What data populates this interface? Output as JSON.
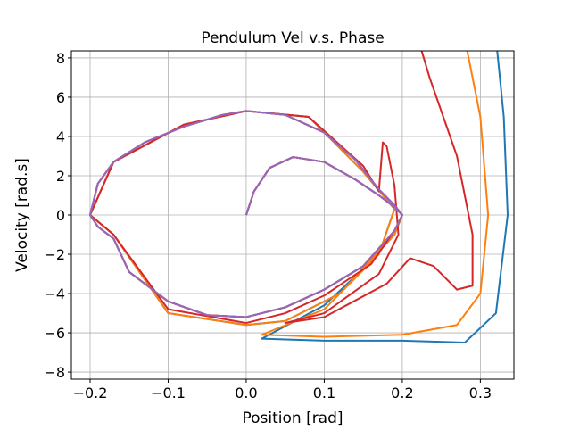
{
  "chart_data": {
    "type": "line",
    "title": "Pendulum Vel v.s. Phase",
    "xlabel": "Position [rad]",
    "ylabel": "Velocity [rad.s]",
    "xlim": [
      -0.224,
      0.343
    ],
    "ylim": [
      -8.36,
      8.36
    ],
    "xticks": [
      {
        "value": -0.2,
        "label": "−0.2"
      },
      {
        "value": -0.1,
        "label": "−0.1"
      },
      {
        "value": 0,
        "label": "0.0"
      },
      0.1,
      0.2,
      0.3
    ],
    "yticks": [
      {
        "value": -8,
        "label": "−8"
      },
      {
        "value": -6,
        "label": "−6"
      },
      {
        "value": -4,
        "label": "−4"
      },
      {
        "value": -2,
        "label": "−2"
      },
      0,
      2,
      4,
      6,
      8
    ],
    "grid": true,
    "series": [
      {
        "color": "#1f77b4",
        "x": [
          0,
          0.01,
          0.03,
          0.06,
          0.1,
          0.14,
          0.17,
          0.19,
          0.2,
          0.19,
          0.15,
          0.1,
          0.05,
          0,
          -0.05,
          -0.1,
          -0.15,
          -0.17,
          -0.19,
          -0.2,
          -0.19,
          -0.17,
          -0.13,
          -0.08,
          -0.03,
          0,
          0.05,
          0.1,
          0.14,
          0.17,
          0.19,
          0.2,
          0.19,
          0.12,
          0.05,
          0,
          -0.1,
          -0.17,
          -0.2,
          -0.17,
          -0.08,
          0,
          0.08,
          0.15,
          0.19,
          0.17,
          0.1,
          0.02,
          0.1,
          0.2,
          0.28,
          0.32,
          0.335,
          0.33,
          0.32
        ],
        "values": [
          0,
          1.2,
          2.4,
          2.95,
          2.7,
          1.8,
          1.0,
          0.4,
          0,
          -0.8,
          -2.6,
          -3.8,
          -4.7,
          -5.2,
          -5.1,
          -4.4,
          -2.9,
          -1.2,
          -0.6,
          0,
          1.6,
          2.7,
          3.7,
          4.5,
          5.1,
          5.3,
          5.1,
          4.2,
          2.8,
          1.3,
          0.5,
          0,
          -1,
          -4,
          -5.4,
          -5.6,
          -5,
          -1,
          0,
          2.7,
          4.6,
          5.3,
          5,
          2.2,
          0.3,
          -2,
          -4.6,
          -6.3,
          -6.4,
          -6.4,
          -6.5,
          -5,
          0,
          5,
          9
        ]
      },
      {
        "color": "#ff7f0e",
        "x": [
          0,
          0.01,
          0.03,
          0.06,
          0.1,
          0.14,
          0.17,
          0.19,
          0.2,
          0.19,
          0.15,
          0.1,
          0.05,
          0,
          -0.05,
          -0.1,
          -0.15,
          -0.17,
          -0.19,
          -0.2,
          -0.19,
          -0.17,
          -0.13,
          -0.08,
          -0.03,
          0,
          0.05,
          0.1,
          0.14,
          0.17,
          0.19,
          0.2,
          0.19,
          0.12,
          0.05,
          0,
          -0.1,
          -0.17,
          -0.2,
          -0.17,
          -0.08,
          0,
          0.08,
          0.15,
          0.19,
          0.17,
          0.1,
          0.02,
          0.1,
          0.2,
          0.27,
          0.3,
          0.31,
          0.3,
          0.28
        ],
        "values": [
          0,
          1.2,
          2.4,
          2.95,
          2.7,
          1.8,
          1.0,
          0.4,
          0,
          -0.8,
          -2.6,
          -3.8,
          -4.7,
          -5.2,
          -5.1,
          -4.4,
          -2.9,
          -1.2,
          -0.6,
          0,
          1.6,
          2.7,
          3.7,
          4.5,
          5.1,
          5.3,
          5.1,
          4.2,
          2.8,
          1.3,
          0.5,
          0,
          -1,
          -4,
          -5.4,
          -5.6,
          -5,
          -1,
          0,
          2.7,
          4.6,
          5.3,
          5,
          2.2,
          0.3,
          -2,
          -4.8,
          -6.1,
          -6.2,
          -6.1,
          -5.6,
          -4,
          0,
          5,
          9
        ]
      },
      {
        "color": "#d62728",
        "x": [
          0,
          0.01,
          0.03,
          0.06,
          0.1,
          0.14,
          0.17,
          0.19,
          0.2,
          0.19,
          0.15,
          0.1,
          0.05,
          0,
          -0.05,
          -0.1,
          -0.15,
          -0.17,
          -0.19,
          -0.2,
          -0.19,
          -0.17,
          -0.13,
          -0.08,
          -0.03,
          0,
          0.05,
          0.1,
          0.14,
          0.17,
          0.19,
          0.2,
          0.19,
          0.16,
          0.1,
          0.05,
          0,
          -0.1,
          -0.17,
          -0.2,
          -0.17,
          -0.08,
          0,
          0.08,
          0.15,
          0.17,
          0.175,
          0.18,
          0.19,
          0.195,
          0.17,
          0.1,
          0.05,
          0.1,
          0.18,
          0.21,
          0.24,
          0.27,
          0.29,
          0.29,
          0.27,
          0.235,
          0.22
        ],
        "values": [
          0,
          1.2,
          2.4,
          2.95,
          2.7,
          1.8,
          1.0,
          0.4,
          0,
          -0.8,
          -2.6,
          -3.8,
          -4.7,
          -5.2,
          -5.1,
          -4.4,
          -2.9,
          -1.2,
          -0.6,
          0,
          1.6,
          2.7,
          3.7,
          4.5,
          5.1,
          5.3,
          5.1,
          4.2,
          2.8,
          1.3,
          0.5,
          0,
          -0.8,
          -2.5,
          -4.1,
          -5,
          -5.5,
          -4.8,
          -1,
          0,
          2.7,
          4.6,
          5.3,
          5,
          2.5,
          1.2,
          3.7,
          3.5,
          1.5,
          -1,
          -3,
          -5,
          -5.5,
          -5.2,
          -3.5,
          -2.2,
          -2.6,
          -3.8,
          -3.6,
          -1,
          3,
          7,
          9
        ]
      },
      {
        "color": "#9467bd",
        "x": [
          0,
          0.01,
          0.03,
          0.06,
          0.1,
          0.14,
          0.17,
          0.19,
          0.2,
          0.19,
          0.15,
          0.1,
          0.05,
          0,
          -0.05,
          -0.1,
          -0.15,
          -0.17,
          -0.19,
          -0.2,
          -0.19,
          -0.17,
          -0.13,
          -0.08,
          -0.03,
          0,
          0.05,
          0.1,
          0.14,
          0.17,
          0.19,
          0.2,
          0.19,
          0.15,
          0.1,
          0.05,
          0,
          -0.05,
          -0.1,
          -0.15,
          -0.17,
          -0.19,
          -0.2,
          -0.19,
          -0.17,
          -0.13,
          -0.08,
          -0.03,
          0,
          0.05,
          0.1,
          0.14,
          0.17,
          0.19,
          0.2
        ],
        "values": [
          0,
          1.2,
          2.4,
          2.95,
          2.7,
          1.8,
          1.0,
          0.4,
          0,
          -0.8,
          -2.6,
          -3.8,
          -4.7,
          -5.2,
          -5.1,
          -4.4,
          -2.9,
          -1.2,
          -0.6,
          0,
          1.6,
          2.7,
          3.7,
          4.5,
          5.1,
          5.3,
          5.1,
          4.2,
          2.8,
          1.3,
          0.5,
          0,
          -0.8,
          -2.6,
          -3.8,
          -4.7,
          -5.2,
          -5.1,
          -4.4,
          -2.9,
          -1.2,
          -0.6,
          0,
          1.6,
          2.7,
          3.7,
          4.5,
          5.1,
          5.3,
          5.1,
          4.2,
          2.8,
          1.3,
          0.5,
          0
        ]
      }
    ]
  }
}
